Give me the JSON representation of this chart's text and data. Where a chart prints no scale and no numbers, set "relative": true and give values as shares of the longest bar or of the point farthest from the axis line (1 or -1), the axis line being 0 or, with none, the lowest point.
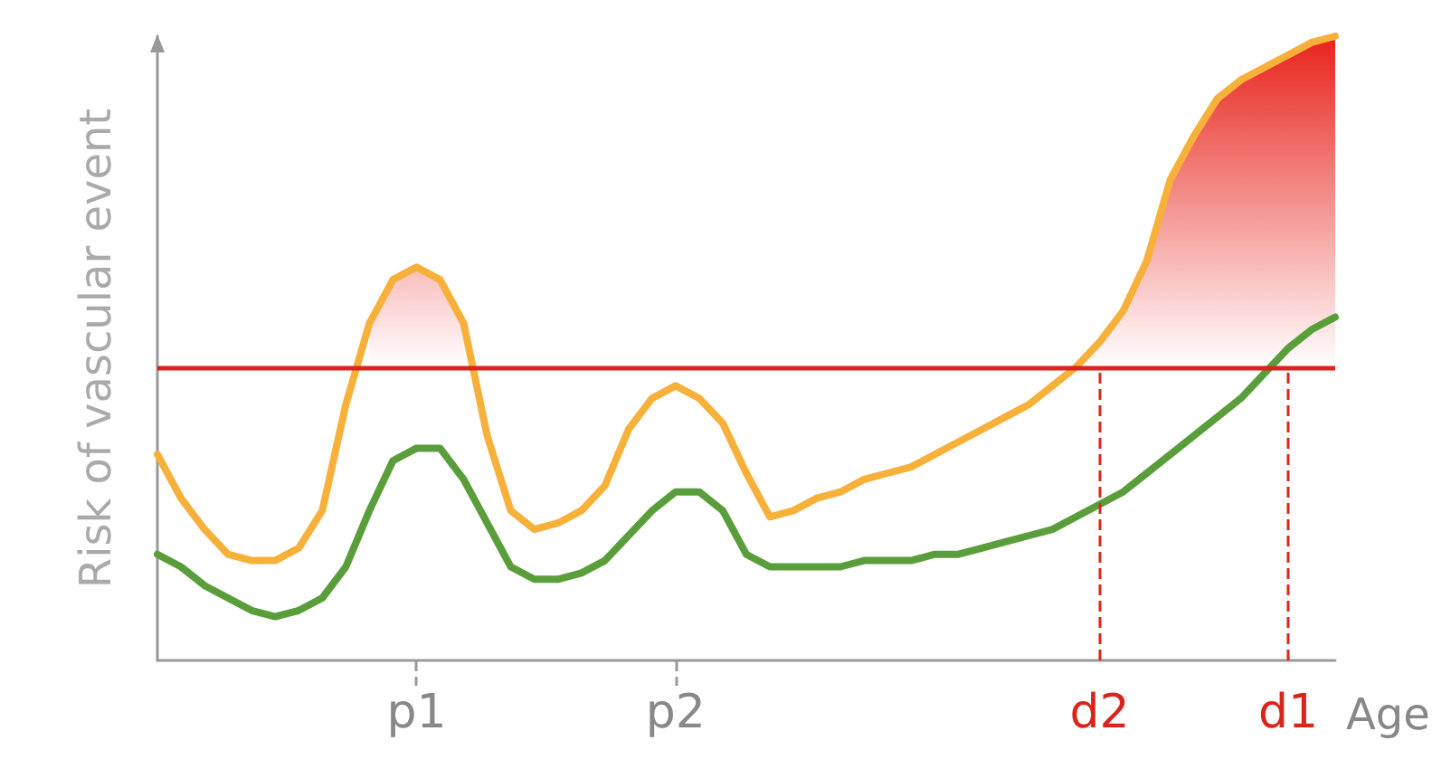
{
  "chart_data": {
    "type": "line",
    "relative": true,
    "xlabel": "Age",
    "ylabel": "Risk of vascular event",
    "categories": [
      null,
      null,
      null,
      null,
      null,
      null,
      null,
      null,
      null,
      null,
      null,
      "p1",
      null,
      null,
      null,
      null,
      null,
      null,
      null,
      null,
      null,
      null,
      "p2",
      null,
      null,
      null,
      null,
      null,
      null,
      null,
      null,
      null,
      null,
      null,
      null,
      null,
      null,
      null,
      null,
      null,
      "d2",
      null,
      null,
      null,
      null,
      null,
      null,
      null,
      "d1",
      null,
      null
    ],
    "series": [
      {
        "color": "#f7b03a",
        "values": [
          0.33,
          0.26,
          0.21,
          0.17,
          0.16,
          0.16,
          0.18,
          0.24,
          0.41,
          0.54,
          0.61,
          0.63,
          0.61,
          0.54,
          0.36,
          0.24,
          0.21,
          0.22,
          0.24,
          0.28,
          0.37,
          0.42,
          0.44,
          0.42,
          0.38,
          0.3,
          0.23,
          0.24,
          0.26,
          0.27,
          0.29,
          0.3,
          0.31,
          0.33,
          0.35,
          0.37,
          0.39,
          0.41,
          0.44,
          0.47,
          0.51,
          0.56,
          0.64,
          0.77,
          0.84,
          0.9,
          0.93,
          0.95,
          0.97,
          0.99,
          1
        ]
      },
      {
        "color": "#5a9e3c",
        "values": [
          0.17,
          0.15,
          0.12,
          0.1,
          0.08,
          0.07,
          0.08,
          0.1,
          0.15,
          0.24,
          0.32,
          0.34,
          0.34,
          0.29,
          0.22,
          0.15,
          0.13,
          0.13,
          0.14,
          0.16,
          0.2,
          0.24,
          0.27,
          0.27,
          0.24,
          0.17,
          0.15,
          0.15,
          0.15,
          0.15,
          0.16,
          0.16,
          0.16,
          0.17,
          0.17,
          0.18,
          0.19,
          0.2,
          0.21,
          0.23,
          0.25,
          0.27,
          0.3,
          0.33,
          0.36,
          0.39,
          0.42,
          0.46,
          0.5,
          0.53,
          0.55
        ]
      },
      {
        "type": "area",
        "color": "#e8231b",
        "values": [
          null,
          null,
          null,
          null,
          null,
          null,
          null,
          null,
          null,
          0.54,
          0.61,
          0.63,
          0.61,
          0.54,
          null,
          null,
          null,
          null,
          null,
          null,
          null,
          null,
          null,
          null,
          null,
          null,
          null,
          null,
          null,
          null,
          null,
          null,
          null,
          null,
          null,
          null,
          null,
          null,
          null,
          0.47,
          0.51,
          0.56,
          0.64,
          0.77,
          0.84,
          0.9,
          0.93,
          0.95,
          0.97,
          0.99,
          1
        ]
      }
    ],
    "ref_lines": [
      {
        "axis": "y",
        "value": 0.47,
        "color": "#d9261c",
        "line_style": "solid"
      },
      {
        "axis": "x",
        "value": "d2",
        "color": "#d9261c",
        "line_style": "dashed"
      },
      {
        "axis": "x",
        "value": "d1",
        "color": "#d9261c",
        "line_style": "dashed"
      }
    ],
    "grid": false,
    "marker": "none",
    "line_style": "solid"
  }
}
